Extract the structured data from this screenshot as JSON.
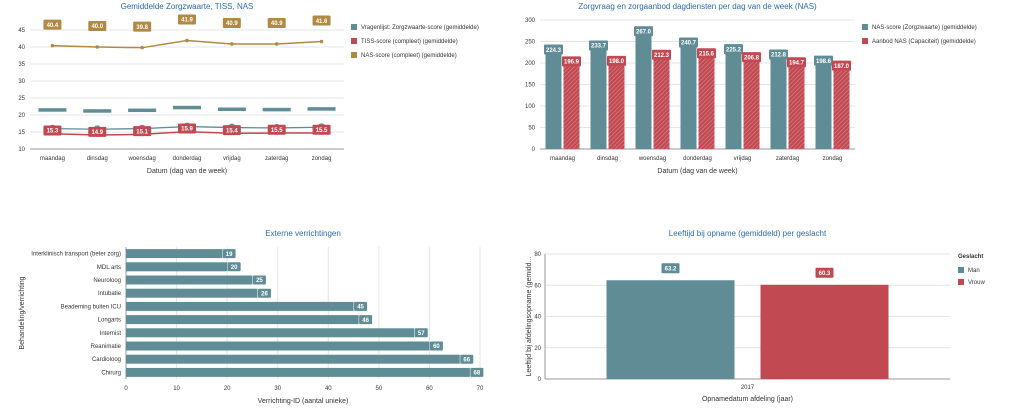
{
  "colors": {
    "teal": "#5f8c95",
    "red": "#c14a52",
    "gold": "#b28845",
    "title": "#2a6aa8"
  },
  "chart_data": [
    {
      "type": "line",
      "title": "Gemiddelde Zorgzwaarte, TISS, NAS",
      "xlabel": "Datum (dag van de week)",
      "ylabel": "",
      "ylim": [
        10,
        45
      ],
      "yticks": [
        10,
        15,
        20,
        25,
        30,
        35,
        40,
        45
      ],
      "categories": [
        "maandag",
        "dinsdag",
        "woensdag",
        "donderdag",
        "vrijdag",
        "zaterdag",
        "zondag"
      ],
      "series": [
        {
          "name": "Vragenlijst: Zorgzwaarte-score (gemiddelde)",
          "color": "#5f8c95",
          "values": [
            22.0,
            21.7,
            21.9,
            22.7,
            22.2,
            22.1,
            22.3
          ],
          "values2": [
            16.0,
            15.8,
            16.0,
            16.6,
            16.3,
            16.2,
            16.4
          ]
        },
        {
          "name": "TISS-score (compleet) (gemiddelde)",
          "color": "#c14a52",
          "values": [
            15.3,
            14.9,
            15.1,
            15.9,
            15.4,
            15.5,
            15.5
          ]
        },
        {
          "name": "NAS-score (compleet) (gemiddelde)",
          "color": "#b28845",
          "values": [
            40.4,
            40.0,
            39.8,
            41.9,
            40.9,
            40.9,
            41.6
          ]
        }
      ],
      "grid": true,
      "legend": "right"
    },
    {
      "type": "bar",
      "title": "Zorgvraag en zorgaanbod dagdiensten per dag van de week (NAS)",
      "xlabel": "Datum (dag van de week)",
      "ylabel": "",
      "ylim": [
        0,
        300
      ],
      "yticks": [
        0,
        50,
        100,
        150,
        200,
        250,
        300
      ],
      "categories": [
        "maandag",
        "dinsdag",
        "woensdag",
        "donderdag",
        "vrijdag",
        "zaterdag",
        "zondag"
      ],
      "series": [
        {
          "name": "NAS-score (Zorgzwaarte) (gemiddelde)",
          "color": "#5f8c95",
          "values": [
            224.3,
            233.7,
            267.0,
            240.7,
            225.2,
            212.8,
            198.6
          ]
        },
        {
          "name": "Aanbod NAS (Capaciteit) (gemiddelde)",
          "color": "#c14a52",
          "values": [
            196.9,
            198.0,
            212.3,
            215.6,
            206.8,
            194.7,
            187.0
          ]
        }
      ],
      "grid": true,
      "legend": "right"
    },
    {
      "type": "bar",
      "orientation": "horizontal",
      "title": "Externe verrichtingen",
      "xlabel": "Verrichting-ID (aantal unieke)",
      "ylabel": "Behandeling/verrichting",
      "xlim": [
        0,
        70
      ],
      "xticks": [
        0,
        10,
        20,
        30,
        40,
        50,
        60,
        70
      ],
      "categories": [
        "Interklinisch transport (beter zorg)",
        "MDL arts",
        "Neuroloog",
        "Intubatie",
        "Beademing buiten ICU",
        "Longarts",
        "Internist",
        "Reanimatie",
        "Cardioloog",
        "Chirurg"
      ],
      "values": [
        19,
        20,
        25,
        26,
        45,
        46,
        57,
        60,
        66,
        68
      ],
      "color": "#5f8c95",
      "grid": true
    },
    {
      "type": "bar",
      "title": "Leeftijd bij opname (gemiddeld) per geslacht",
      "xlabel": "Opnamedatum afdeling (jaar)",
      "ylabel": "Leeftijd bij afdelingsopname (gemidd...",
      "ylim": [
        0,
        80
      ],
      "yticks": [
        0,
        20,
        40,
        60,
        80
      ],
      "categories": [
        "2017"
      ],
      "series": [
        {
          "name": "Man",
          "color": "#5f8c95",
          "values": [
            63.2
          ]
        },
        {
          "name": "Vrouw",
          "color": "#c14a52",
          "values": [
            60.3
          ]
        }
      ],
      "legend_title": "Geslacht",
      "grid": true,
      "legend": "right"
    }
  ]
}
